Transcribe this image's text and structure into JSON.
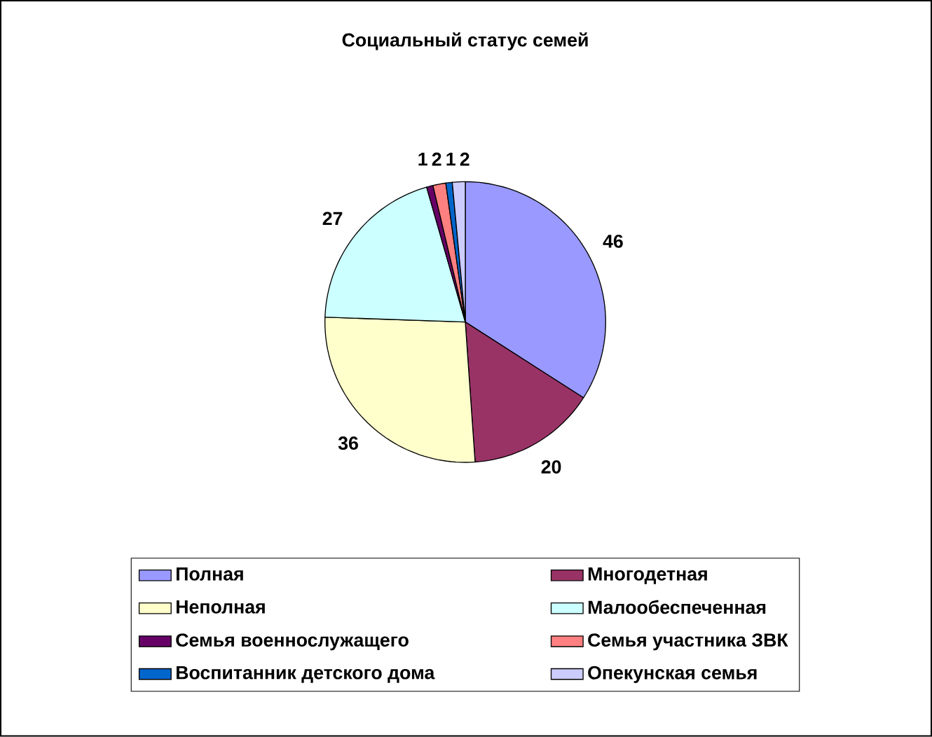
{
  "chart_data": {
    "type": "pie",
    "title": "Социальный статус семей",
    "categories": [
      "Полная",
      "Многодетная",
      "Неполная",
      "Малообеспеченная",
      "Семья военнослужащего",
      "Семья участника ЗВК",
      "Воспитанник детского дома",
      "Опекунская семья"
    ],
    "values": [
      46,
      20,
      36,
      27,
      1,
      2,
      1,
      2
    ],
    "colors": [
      "#9999ff",
      "#993366",
      "#ffffcc",
      "#ccffff",
      "#660066",
      "#ff8080",
      "#0066cc",
      "#ccccff"
    ],
    "data_labels": true,
    "legend": "bottom"
  }
}
